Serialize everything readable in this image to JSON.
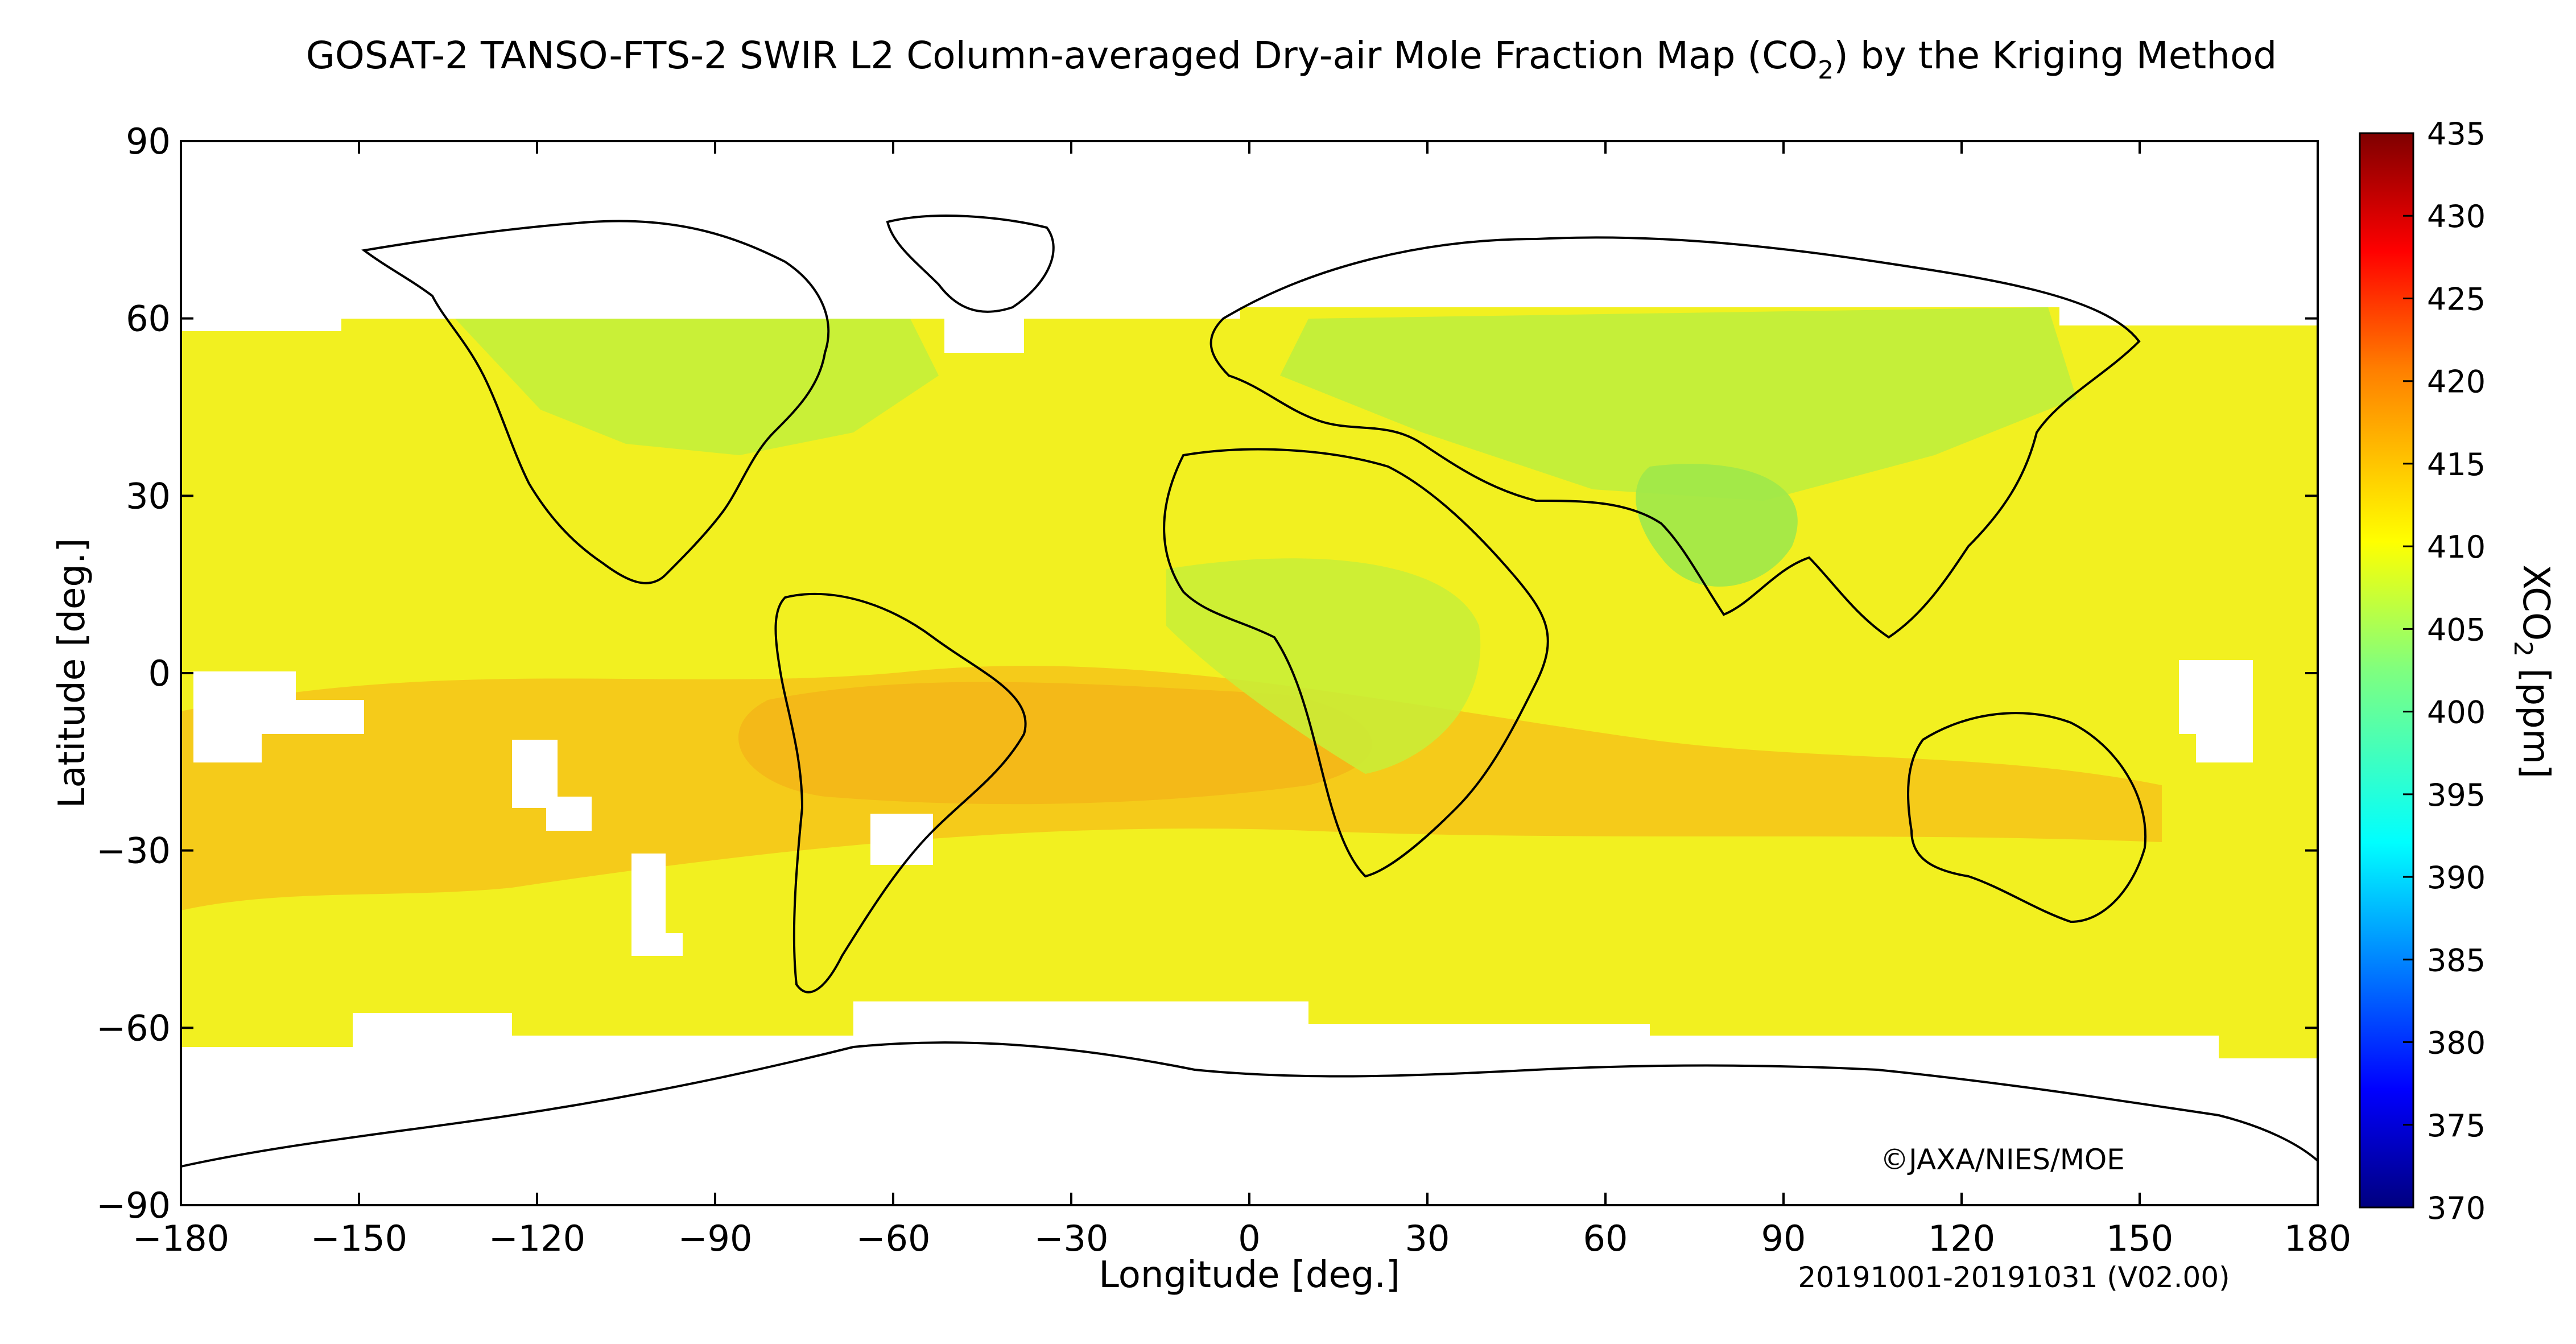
{
  "title_main": "GOSAT-2 TANSO-FTS-2 SWIR L2 Column-averaged Dry-air Mole Fraction Map (CO",
  "title_sub": "2",
  "title_end": ") by the Kriging Method",
  "xlabel": "Longitude [deg.]",
  "ylabel": "Latitude [deg.]",
  "x_ticks": [
    "−180",
    "−150",
    "−120",
    "−90",
    "−60",
    "−30",
    "0",
    "30",
    "60",
    "90",
    "120",
    "150",
    "180"
  ],
  "y_ticks": [
    "90",
    "60",
    "30",
    "0",
    "−30",
    "−60",
    "−90"
  ],
  "colorbar": {
    "label_main": "XCO",
    "label_sub": "2",
    "label_end": " [ppm]",
    "ticks": [
      "435",
      "430",
      "425",
      "420",
      "415",
      "410",
      "405",
      "400",
      "395",
      "390",
      "385",
      "380",
      "375",
      "370"
    ],
    "range_ppm": [
      370,
      435
    ],
    "colors": [
      "#00007f",
      "#0000ff",
      "#007fff",
      "#00ffff",
      "#7fff7f",
      "#ffff00",
      "#ff7f00",
      "#ff0000",
      "#7f0000"
    ]
  },
  "credit": "©JAXA/NIES/MOE",
  "period": "20191001-20191031 (V02.00)",
  "map_colors": {
    "land_green": "#b8f03c",
    "yellow": "#f2f020",
    "orange": "#f6c41a",
    "no_data": "#ffffff",
    "coast": "#000000"
  }
}
